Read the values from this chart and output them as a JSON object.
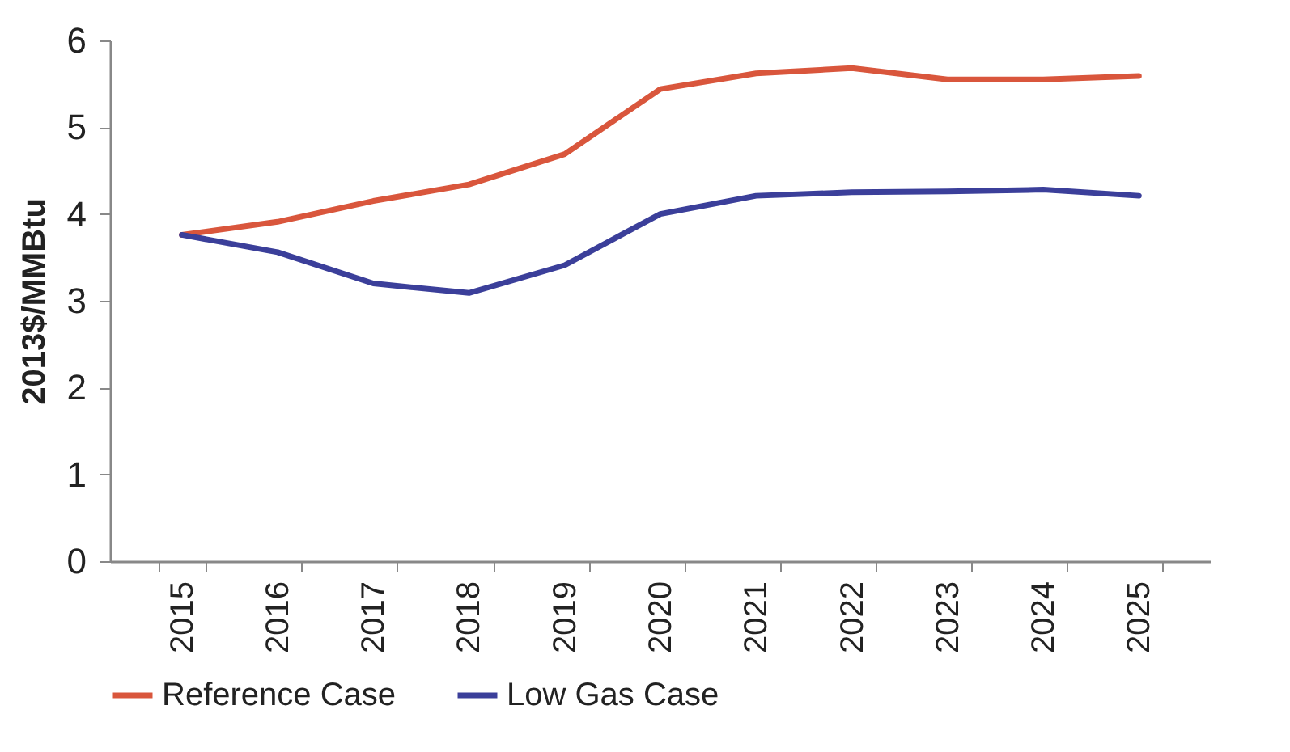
{
  "chart_data": {
    "type": "line",
    "ylabel": "2013$/MMBtu",
    "categories": [
      "2015",
      "2016",
      "2017",
      "2018",
      "2019",
      "2020",
      "2021",
      "2022",
      "2023",
      "2024",
      "2025"
    ],
    "series": [
      {
        "name": "Reference Case",
        "color": "#d9563c",
        "values": [
          3.76,
          3.91,
          4.15,
          4.34,
          4.69,
          5.44,
          5.62,
          5.68,
          5.55,
          5.55,
          5.59
        ]
      },
      {
        "name": "Low Gas Case",
        "color": "#3b3f9a",
        "values": [
          3.76,
          3.56,
          3.2,
          3.09,
          3.41,
          4.0,
          4.21,
          4.25,
          4.26,
          4.28,
          4.21
        ]
      }
    ],
    "ylim": [
      0,
      6
    ],
    "yticks": [
      0,
      1,
      2,
      3,
      4,
      5,
      6
    ],
    "grid": false,
    "legend": "bottom",
    "marker": "none",
    "line_style": "solid"
  }
}
